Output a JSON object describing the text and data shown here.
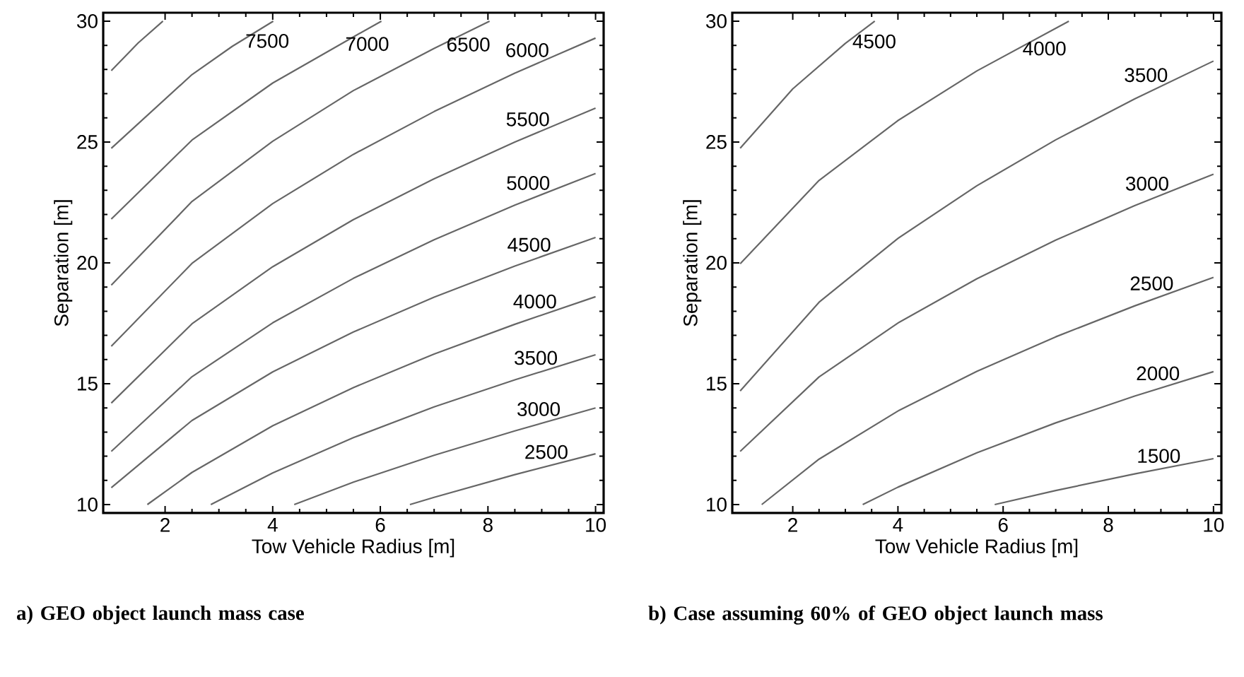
{
  "chart_data": [
    {
      "type": "line",
      "title": "a) GEO object launch mass case",
      "xlabel": "Tow Vehicle Radius [m]",
      "ylabel": "Separation [m]",
      "xlim": [
        0.85,
        10.15
      ],
      "ylim": [
        9.65,
        30.35
      ],
      "xticks": [
        2,
        4,
        6,
        8,
        10
      ],
      "yticks": [
        10,
        15,
        20,
        25,
        30
      ],
      "series": [
        {
          "name": null,
          "color": "#666666",
          "x": [
            1,
            1.5,
            1.96
          ],
          "values": [
            27.95,
            29.1,
            30
          ]
        },
        {
          "name": "7500",
          "color": "#666666",
          "x": [
            1,
            2.5,
            3.25,
            4.01
          ],
          "values": [
            24.74,
            27.79,
            28.96,
            30
          ]
        },
        {
          "name": "7000",
          "color": "#666666",
          "x": [
            1,
            2.5,
            4,
            5.5,
            6.02
          ],
          "values": [
            21.81,
            25.08,
            27.44,
            29.35,
            30
          ]
        },
        {
          "name": "6500",
          "color": "#666666",
          "x": [
            1,
            2.5,
            4,
            5.5,
            7,
            8.03
          ],
          "values": [
            19.08,
            22.54,
            25.03,
            27.13,
            28.87,
            30
          ]
        },
        {
          "name": "6000",
          "color": "#666666",
          "x": [
            1,
            2.5,
            4,
            5.5,
            7,
            8.5,
            10
          ],
          "values": [
            16.55,
            19.98,
            22.45,
            24.49,
            26.26,
            27.85,
            29.3
          ]
        },
        {
          "name": "5500",
          "color": "#666666",
          "x": [
            1,
            2.5,
            4,
            5.5,
            7,
            8.5,
            10
          ],
          "values": [
            14.2,
            17.48,
            19.84,
            21.79,
            23.48,
            25.0,
            26.4
          ]
        },
        {
          "name": "5000",
          "color": "#666666",
          "x": [
            1,
            2.5,
            4,
            5.5,
            7,
            8.5,
            10
          ],
          "values": [
            12.2,
            15.29,
            17.52,
            19.36,
            20.96,
            22.39,
            23.7
          ]
        },
        {
          "name": "4500",
          "color": "#666666",
          "x": [
            1,
            2.5,
            4,
            5.5,
            7,
            8.5,
            10
          ],
          "values": [
            10.7,
            13.48,
            15.49,
            17.14,
            18.58,
            19.87,
            21.05
          ]
        },
        {
          "name": "4000",
          "color": "#666666",
          "x": [
            1.67,
            2.5,
            4,
            5.5,
            7,
            8.5,
            10
          ],
          "values": [
            10,
            11.33,
            13.26,
            14.84,
            16.23,
            17.46,
            18.6
          ]
        },
        {
          "name": "3500",
          "color": "#666666",
          "x": [
            2.85,
            4,
            5.5,
            7,
            8.5,
            10
          ],
          "values": [
            10,
            11.31,
            12.77,
            14.04,
            15.16,
            16.2
          ]
        },
        {
          "name": "3000",
          "color": "#666666",
          "x": [
            4.4,
            5.5,
            7,
            8.5,
            10
          ],
          "values": [
            10,
            10.93,
            12.04,
            13.05,
            14.0
          ]
        },
        {
          "name": "2500",
          "color": "#666666",
          "x": [
            6.55,
            7,
            8.5,
            10
          ],
          "values": [
            10,
            10.3,
            11.24,
            12.1
          ]
        }
      ]
    },
    {
      "type": "line",
      "title": "b) Case assuming 60% of GEO object launch mass",
      "xlabel": "Tow Vehicle Radius [m]",
      "ylabel": "Separation [m]",
      "xlim": [
        0.85,
        10.15
      ],
      "ylim": [
        9.65,
        30.35
      ],
      "xticks": [
        2,
        4,
        6,
        8,
        10
      ],
      "yticks": [
        10,
        15,
        20,
        25,
        30
      ],
      "series": [
        {
          "name": "4500",
          "color": "#666666",
          "x": [
            1,
            2,
            3,
            3.56
          ],
          "values": [
            24.74,
            27.2,
            29.08,
            30
          ]
        },
        {
          "name": "4000",
          "color": "#666666",
          "x": [
            1,
            2.5,
            4,
            5.5,
            7.25
          ],
          "values": [
            19.96,
            23.41,
            25.89,
            27.94,
            30
          ]
        },
        {
          "name": "3500",
          "color": "#666666",
          "x": [
            1,
            2.5,
            4,
            5.5,
            7,
            8.5,
            10
          ],
          "values": [
            14.7,
            18.37,
            21.01,
            23.19,
            25.09,
            26.78,
            28.35
          ]
        },
        {
          "name": "3000",
          "color": "#666666",
          "x": [
            1,
            2.5,
            4,
            5.5,
            7,
            8.5,
            10
          ],
          "values": [
            12.2,
            15.28,
            17.51,
            19.34,
            20.94,
            22.37,
            23.67
          ]
        },
        {
          "name": "2500",
          "color": "#666666",
          "x": [
            1.41,
            2.5,
            4,
            5.5,
            7,
            8.5,
            10
          ],
          "values": [
            10,
            11.88,
            13.87,
            15.51,
            16.94,
            18.22,
            19.4
          ]
        },
        {
          "name": "2000",
          "color": "#666666",
          "x": [
            3.33,
            4,
            5.5,
            7,
            8.5,
            10
          ],
          "values": [
            10,
            10.72,
            12.14,
            13.38,
            14.49,
            15.5
          ]
        },
        {
          "name": "1500",
          "color": "#666666",
          "x": [
            5.84,
            7,
            8.5,
            10
          ],
          "values": [
            10,
            10.58,
            11.27,
            11.9
          ]
        }
      ]
    }
  ]
}
